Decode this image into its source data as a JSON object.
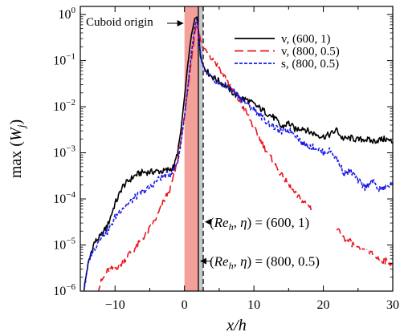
{
  "chart_data": {
    "type": "line",
    "xlabel": "x/h",
    "ylabel": "max (W_j)",
    "xscale": "linear",
    "yscale": "log",
    "xlim": [
      -15,
      30
    ],
    "ylim": [
      1e-06,
      1.5
    ],
    "grid": false,
    "legend_position": "top-right",
    "x_ticks": [
      {
        "value": -10,
        "label": "−10"
      },
      {
        "value": 0,
        "label": "0"
      },
      {
        "value": 10,
        "label": "10"
      },
      {
        "value": 20,
        "label": "20"
      },
      {
        "value": 30,
        "label": "30"
      }
    ],
    "y_ticks": [
      {
        "exp": 0,
        "value": 1,
        "base": "10",
        "sup": "0"
      },
      {
        "exp": -1,
        "value": 0.1,
        "base": "10",
        "sup": "−1"
      },
      {
        "exp": -2,
        "value": 0.01,
        "base": "10",
        "sup": "−2"
      },
      {
        "exp": -3,
        "value": 0.001,
        "base": "10",
        "sup": "−3"
      },
      {
        "exp": -4,
        "value": 0.0001,
        "base": "10",
        "sup": "−4"
      },
      {
        "exp": -5,
        "value": 1e-05,
        "base": "10",
        "sup": "−5"
      },
      {
        "exp": -6,
        "value": 1e-06,
        "base": "10",
        "sup": "−6"
      }
    ],
    "shaded_region": {
      "x": [
        0,
        2
      ],
      "color": "#f4a09a"
    },
    "grey_band": {
      "x": [
        2,
        2.7
      ],
      "color": "#c8c8c8"
    },
    "vertical_lines": [
      {
        "x": 2,
        "style": "solid",
        "color": "#000000"
      },
      {
        "x": 2.7,
        "style": "dashed",
        "color": "#000000"
      }
    ],
    "annotations": [
      {
        "text": "Cuboid origin",
        "x": 0,
        "y_exp": -0.1,
        "kind": "arrow"
      },
      {
        "text": "(Re_h, η) = (600, 1)",
        "x": 2.7,
        "y_exp": -4.5,
        "kind": "arrow"
      },
      {
        "text": "(Re_h, η) = (800, 0.5)",
        "x": 2.0,
        "y_exp": -5.35,
        "kind": "arrow"
      }
    ],
    "series": [
      {
        "name": "v, (600, 1)",
        "color": "#000000",
        "dash": "solid",
        "x": [
          -14.5,
          -14,
          -13.5,
          -13,
          -12,
          -11,
          -10,
          -9.5,
          -9,
          -8,
          -7,
          -6,
          -5,
          -4,
          -3,
          -2,
          -1.5,
          -1,
          -0.5,
          0,
          0.5,
          1,
          1.5,
          1.8,
          2,
          2.3,
          2.7,
          3,
          4,
          5,
          6,
          7,
          8,
          9,
          10,
          11,
          12,
          13,
          14,
          15,
          16,
          17,
          18,
          19,
          20,
          21,
          22,
          22.5,
          23,
          24,
          25,
          26,
          27,
          28,
          29,
          30
        ],
        "y_exp": [
          -6.0,
          -5.5,
          -5.2,
          -4.95,
          -4.8,
          -4.55,
          -4.1,
          -3.95,
          -3.75,
          -3.6,
          -3.48,
          -3.42,
          -3.42,
          -3.4,
          -3.4,
          -3.35,
          -3.3,
          -3.0,
          -2.5,
          -1.8,
          -1.05,
          -0.45,
          -0.08,
          -0.05,
          -0.3,
          -0.9,
          -1.1,
          -1.2,
          -1.35,
          -1.45,
          -1.55,
          -1.7,
          -1.8,
          -1.85,
          -1.95,
          -2.05,
          -2.15,
          -2.25,
          -2.45,
          -2.35,
          -2.5,
          -2.45,
          -2.55,
          -2.6,
          -2.65,
          -2.6,
          -2.5,
          -2.65,
          -2.7,
          -2.68,
          -2.72,
          -2.7,
          -2.75,
          -2.72,
          -2.7,
          -2.78
        ]
      },
      {
        "name": "v, (800, 0.5)",
        "color": "#e8141c",
        "dash": "long-dash",
        "x": [
          -12.5,
          -12,
          -11,
          -10,
          -9,
          -8,
          -7,
          -6,
          -5,
          -4,
          -3,
          -2,
          -1,
          -0.5,
          0,
          0.5,
          1,
          1.5,
          1.8,
          2,
          2.5,
          3,
          4,
          5,
          6,
          7,
          8,
          9,
          10,
          11,
          12,
          13,
          14,
          15,
          16,
          17,
          18,
          19,
          20,
          21,
          22,
          23,
          24,
          25,
          26,
          27,
          28,
          29,
          30
        ],
        "y_exp": [
          -6.0,
          -5.8,
          -5.55,
          -5.5,
          -5.4,
          -5.2,
          -5.05,
          -4.85,
          -4.65,
          -4.4,
          -4.05,
          -3.75,
          -3.2,
          -2.7,
          -2.2,
          -1.6,
          -1.0,
          -0.4,
          -0.15,
          -0.3,
          -0.7,
          -0.75,
          -0.95,
          -1.15,
          -1.4,
          -1.65,
          -1.9,
          -2.15,
          -2.45,
          -2.75,
          -3.0,
          -3.25,
          -3.5,
          -3.7,
          -3.9,
          -4.05,
          -4.15,
          -4.4,
          -4.45,
          -4.55,
          -4.65,
          -4.85,
          -4.95,
          -5.1,
          -5.15,
          -5.2,
          -5.3,
          -5.35,
          -5.4
        ]
      },
      {
        "name": "s, (800, 0.5)",
        "color": "#1a1ae6",
        "dash": "short-dash",
        "x": [
          -14.5,
          -14,
          -13.5,
          -13,
          -12,
          -11,
          -10,
          -9,
          -8,
          -7,
          -6,
          -5,
          -4,
          -3,
          -2,
          -1.5,
          -1,
          -0.5,
          0,
          0.5,
          1,
          1.5,
          1.8,
          2,
          2.5,
          3,
          4,
          5,
          6,
          7,
          8,
          9,
          10,
          11,
          12,
          13,
          14,
          15,
          16,
          17,
          18,
          19,
          20,
          21,
          22,
          23,
          24,
          25,
          26,
          27,
          28,
          29,
          30
        ],
        "y_exp": [
          -6.0,
          -5.55,
          -5.2,
          -5.1,
          -4.8,
          -4.7,
          -4.4,
          -4.2,
          -4.1,
          -3.95,
          -3.85,
          -3.75,
          -3.6,
          -3.5,
          -3.45,
          -3.35,
          -3.2,
          -2.8,
          -2.2,
          -1.55,
          -0.85,
          -0.25,
          -0.1,
          -0.45,
          -1.05,
          -1.25,
          -1.4,
          -1.5,
          -1.55,
          -1.65,
          -1.8,
          -1.95,
          -2.05,
          -2.2,
          -2.35,
          -2.45,
          -2.55,
          -2.5,
          -2.6,
          -2.8,
          -2.85,
          -2.9,
          -3.0,
          -2.95,
          -3.15,
          -3.45,
          -3.4,
          -3.6,
          -3.75,
          -3.6,
          -3.8,
          -3.75,
          -3.65
        ]
      }
    ]
  }
}
